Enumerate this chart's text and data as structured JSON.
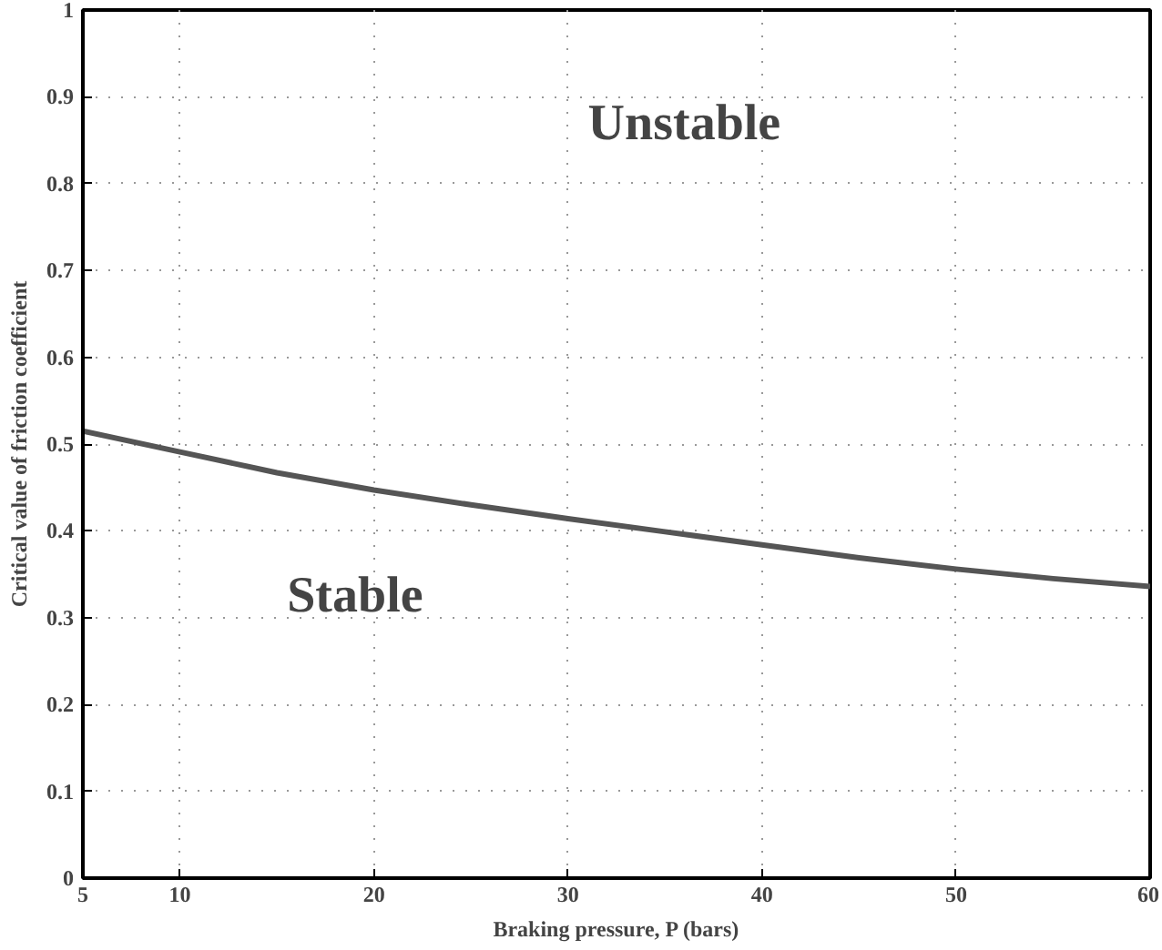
{
  "chart_data": {
    "type": "line",
    "xlabel": "Braking pressure, P (bars)",
    "ylabel": "Critical value of friction coefficient",
    "x": [
      5,
      10,
      15,
      20,
      25,
      30,
      35,
      40,
      45,
      50,
      55,
      60
    ],
    "series": [
      {
        "color": "#555555",
        "values": [
          0.515,
          0.491,
          0.467,
          0.447,
          0.43,
          0.414,
          0.399,
          0.384,
          0.369,
          0.356,
          0.345,
          0.336
        ]
      }
    ],
    "xlim": [
      5,
      60
    ],
    "ylim": [
      0,
      1
    ],
    "xticks": [
      5,
      10,
      20,
      30,
      40,
      50,
      60
    ],
    "yticks": [
      0,
      0.1,
      0.2,
      0.3,
      0.4,
      0.5,
      0.6,
      0.7,
      0.8,
      0.9,
      1
    ],
    "grid": true,
    "marker": "none",
    "line_style": "solid",
    "annotations": [
      "Unstable",
      "Stable"
    ]
  }
}
